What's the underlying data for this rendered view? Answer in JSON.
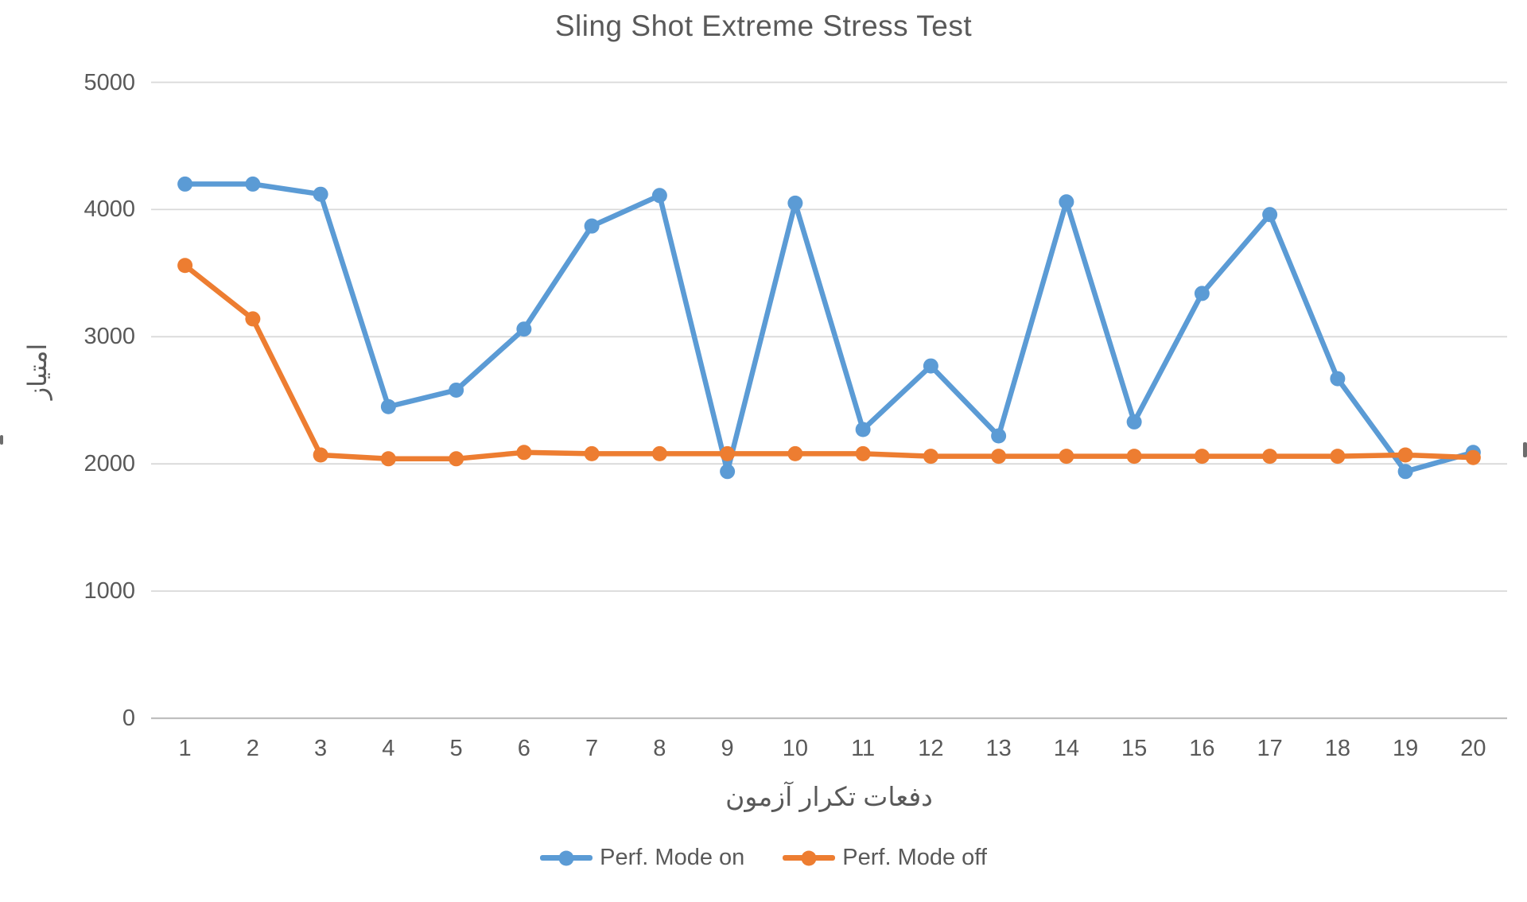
{
  "chart_data": {
    "type": "line",
    "title": "Sling Shot Extreme Stress Test",
    "xlabel": "دفعات تکرار آزمون",
    "ylabel": "امتیاز",
    "x": [
      1,
      2,
      3,
      4,
      5,
      6,
      7,
      8,
      9,
      10,
      11,
      12,
      13,
      14,
      15,
      16,
      17,
      18,
      19,
      20
    ],
    "y_ticks": [
      0,
      1000,
      2000,
      3000,
      4000,
      5000
    ],
    "ylim": [
      0,
      5000
    ],
    "grid": true,
    "legend_position": "bottom",
    "series": [
      {
        "name": "Perf. Mode on",
        "color": "#5B9BD5",
        "values": [
          4200,
          4200,
          4120,
          2450,
          2580,
          3060,
          3870,
          4110,
          1940,
          4050,
          2270,
          2770,
          2220,
          4060,
          2330,
          3340,
          3960,
          2670,
          1940,
          2090
        ]
      },
      {
        "name": "Perf. Mode off",
        "color": "#ED7D31",
        "values": [
          3560,
          3140,
          2070,
          2040,
          2040,
          2090,
          2080,
          2080,
          2080,
          2080,
          2080,
          2060,
          2060,
          2060,
          2060,
          2060,
          2060,
          2060,
          2070,
          2050
        ]
      }
    ]
  },
  "colors": {
    "grid": "#D9D9D9",
    "axis_line": "#BFBFBF",
    "text": "#595959",
    "background": "#FFFFFF"
  }
}
